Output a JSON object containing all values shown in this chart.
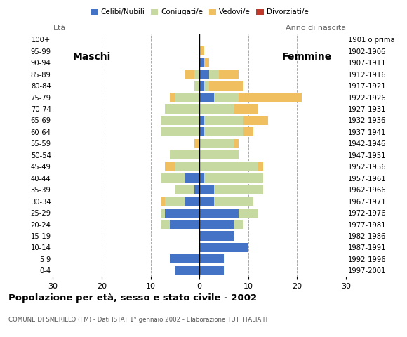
{
  "age_groups": [
    "0-4",
    "5-9",
    "10-14",
    "15-19",
    "20-24",
    "25-29",
    "30-34",
    "35-39",
    "40-44",
    "45-49",
    "50-54",
    "55-59",
    "60-64",
    "65-69",
    "70-74",
    "75-79",
    "80-84",
    "85-89",
    "90-94",
    "95-99",
    "100+"
  ],
  "birth_years": [
    "1997-2001",
    "1992-1996",
    "1987-1991",
    "1982-1986",
    "1977-1981",
    "1972-1976",
    "1967-1971",
    "1962-1966",
    "1957-1961",
    "1952-1956",
    "1947-1951",
    "1942-1946",
    "1937-1941",
    "1932-1936",
    "1927-1931",
    "1922-1926",
    "1917-1921",
    "1912-1916",
    "1907-1911",
    "1902-1906",
    "1901 o prima"
  ],
  "males": {
    "celibe": [
      5,
      6,
      0,
      0,
      6,
      7,
      3,
      1,
      3,
      0,
      0,
      0,
      0,
      0,
      0,
      0,
      0,
      0,
      0,
      0,
      0
    ],
    "coniugato": [
      0,
      0,
      0,
      0,
      2,
      1,
      4,
      4,
      5,
      5,
      6,
      0,
      8,
      8,
      7,
      5,
      1,
      1,
      0,
      0,
      0
    ],
    "vedovo": [
      0,
      0,
      0,
      0,
      0,
      0,
      1,
      0,
      0,
      2,
      0,
      1,
      0,
      0,
      0,
      1,
      0,
      2,
      0,
      0,
      0
    ],
    "divorziato": [
      0,
      0,
      0,
      0,
      0,
      0,
      0,
      0,
      0,
      0,
      0,
      0,
      0,
      0,
      0,
      0,
      0,
      0,
      0,
      0,
      0
    ]
  },
  "females": {
    "nubile": [
      5,
      5,
      10,
      7,
      7,
      8,
      3,
      3,
      1,
      0,
      0,
      0,
      1,
      1,
      0,
      3,
      1,
      2,
      1,
      0,
      0
    ],
    "coniugata": [
      0,
      0,
      0,
      0,
      2,
      4,
      8,
      10,
      12,
      12,
      8,
      7,
      8,
      8,
      7,
      5,
      1,
      2,
      0,
      0,
      0
    ],
    "vedova": [
      0,
      0,
      0,
      0,
      0,
      0,
      0,
      0,
      0,
      1,
      0,
      1,
      2,
      5,
      5,
      13,
      7,
      4,
      1,
      1,
      0
    ],
    "divorziata": [
      0,
      0,
      0,
      0,
      0,
      0,
      0,
      0,
      0,
      0,
      0,
      0,
      0,
      0,
      0,
      0,
      0,
      0,
      0,
      0,
      0
    ]
  },
  "colors": {
    "celibe_nubile": "#4472c4",
    "coniugato": "#c5d9a0",
    "vedovo": "#f0c060",
    "divorziato": "#c0392b"
  },
  "title": "Popolazione per età, sesso e stato civile - 2002",
  "subtitle": "COMUNE DI SMERILLO (FM) - Dati ISTAT 1° gennaio 2002 - Elaborazione TUTTITALIA.IT",
  "xlabel_left": "Maschi",
  "xlabel_right": "Femmine",
  "ylabel_left": "Età",
  "ylabel_right": "Anno di nascita",
  "xlim": 30,
  "background_color": "#ffffff"
}
